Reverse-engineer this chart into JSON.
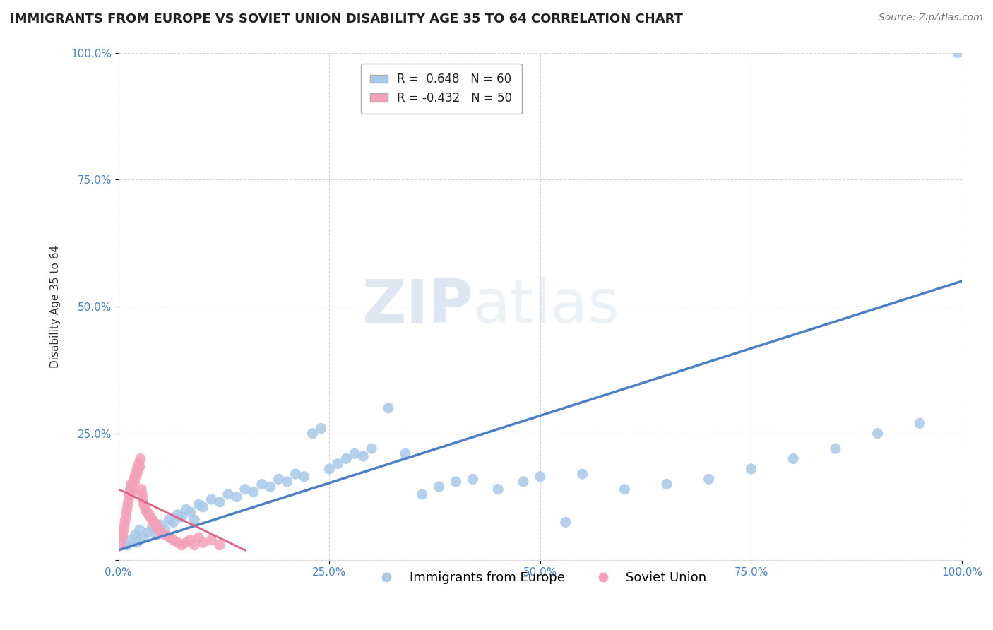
{
  "title": "IMMIGRANTS FROM EUROPE VS SOVIET UNION DISABILITY AGE 35 TO 64 CORRELATION CHART",
  "source": "Source: ZipAtlas.com",
  "ylabel": "Disability Age 35 to 64",
  "xlim": [
    0,
    100
  ],
  "ylim": [
    0,
    100
  ],
  "xticks": [
    0,
    25,
    50,
    75,
    100
  ],
  "yticks": [
    0,
    25,
    50,
    75,
    100
  ],
  "xticklabels": [
    "0.0%",
    "25.0%",
    "50.0%",
    "75.0%",
    "100.0%"
  ],
  "yticklabels": [
    "",
    "25.0%",
    "50.0%",
    "75.0%",
    "100.0%"
  ],
  "blue_R": 0.648,
  "blue_N": 60,
  "pink_R": -0.432,
  "pink_N": 50,
  "legend_label_blue": "Immigrants from Europe",
  "legend_label_pink": "Soviet Union",
  "blue_color": "#a8c8e8",
  "pink_color": "#f4a0b8",
  "blue_line_color": "#4a80c8",
  "pink_line_color": "#e06080",
  "blue_line": [
    [
      0,
      2.0
    ],
    [
      100,
      55.0
    ]
  ],
  "pink_line": [
    [
      0,
      14.0
    ],
    [
      15,
      2.0
    ]
  ],
  "blue_scatter": [
    [
      1.0,
      3.0
    ],
    [
      1.5,
      4.0
    ],
    [
      2.0,
      5.0
    ],
    [
      2.2,
      3.5
    ],
    [
      2.5,
      6.0
    ],
    [
      3.0,
      4.5
    ],
    [
      3.5,
      5.5
    ],
    [
      4.0,
      6.5
    ],
    [
      4.5,
      5.0
    ],
    [
      5.0,
      7.0
    ],
    [
      5.5,
      6.0
    ],
    [
      6.0,
      8.0
    ],
    [
      6.5,
      7.5
    ],
    [
      7.0,
      9.0
    ],
    [
      7.5,
      8.5
    ],
    [
      8.0,
      10.0
    ],
    [
      8.5,
      9.5
    ],
    [
      9.0,
      8.0
    ],
    [
      9.5,
      11.0
    ],
    [
      10.0,
      10.5
    ],
    [
      11.0,
      12.0
    ],
    [
      12.0,
      11.5
    ],
    [
      13.0,
      13.0
    ],
    [
      14.0,
      12.5
    ],
    [
      15.0,
      14.0
    ],
    [
      16.0,
      13.5
    ],
    [
      17.0,
      15.0
    ],
    [
      18.0,
      14.5
    ],
    [
      19.0,
      16.0
    ],
    [
      20.0,
      15.5
    ],
    [
      21.0,
      17.0
    ],
    [
      22.0,
      16.5
    ],
    [
      23.0,
      25.0
    ],
    [
      24.0,
      26.0
    ],
    [
      25.0,
      18.0
    ],
    [
      26.0,
      19.0
    ],
    [
      27.0,
      20.0
    ],
    [
      28.0,
      21.0
    ],
    [
      29.0,
      20.5
    ],
    [
      30.0,
      22.0
    ],
    [
      32.0,
      30.0
    ],
    [
      34.0,
      21.0
    ],
    [
      36.0,
      13.0
    ],
    [
      38.0,
      14.5
    ],
    [
      40.0,
      15.5
    ],
    [
      42.0,
      16.0
    ],
    [
      45.0,
      14.0
    ],
    [
      48.0,
      15.5
    ],
    [
      50.0,
      16.5
    ],
    [
      53.0,
      7.5
    ],
    [
      55.0,
      17.0
    ],
    [
      60.0,
      14.0
    ],
    [
      65.0,
      15.0
    ],
    [
      70.0,
      16.0
    ],
    [
      75.0,
      18.0
    ],
    [
      80.0,
      20.0
    ],
    [
      85.0,
      22.0
    ],
    [
      90.0,
      25.0
    ],
    [
      95.0,
      27.0
    ],
    [
      99.5,
      100.0
    ]
  ],
  "pink_scatter": [
    [
      0.3,
      3.0
    ],
    [
      0.4,
      4.5
    ],
    [
      0.5,
      5.0
    ],
    [
      0.6,
      6.0
    ],
    [
      0.7,
      7.0
    ],
    [
      0.8,
      8.0
    ],
    [
      0.9,
      9.0
    ],
    [
      1.0,
      10.0
    ],
    [
      1.1,
      11.0
    ],
    [
      1.2,
      12.0
    ],
    [
      1.3,
      13.0
    ],
    [
      1.4,
      14.0
    ],
    [
      1.5,
      15.0
    ],
    [
      1.6,
      14.5
    ],
    [
      1.7,
      13.5
    ],
    [
      1.8,
      16.0
    ],
    [
      1.9,
      15.5
    ],
    [
      2.0,
      17.0
    ],
    [
      2.1,
      16.5
    ],
    [
      2.2,
      18.0
    ],
    [
      2.3,
      17.5
    ],
    [
      2.4,
      19.0
    ],
    [
      2.5,
      18.5
    ],
    [
      2.6,
      20.0
    ],
    [
      2.7,
      14.0
    ],
    [
      2.8,
      13.0
    ],
    [
      2.9,
      12.0
    ],
    [
      3.0,
      11.0
    ],
    [
      3.2,
      10.0
    ],
    [
      3.4,
      9.5
    ],
    [
      3.6,
      9.0
    ],
    [
      3.8,
      8.5
    ],
    [
      4.0,
      8.0
    ],
    [
      4.2,
      7.5
    ],
    [
      4.4,
      7.0
    ],
    [
      4.6,
      6.5
    ],
    [
      4.8,
      6.0
    ],
    [
      5.0,
      5.5
    ],
    [
      5.5,
      5.0
    ],
    [
      6.0,
      4.5
    ],
    [
      6.5,
      4.0
    ],
    [
      7.0,
      3.5
    ],
    [
      7.5,
      3.0
    ],
    [
      8.0,
      3.5
    ],
    [
      8.5,
      4.0
    ],
    [
      9.0,
      3.0
    ],
    [
      9.5,
      4.5
    ],
    [
      10.0,
      3.5
    ],
    [
      11.0,
      4.0
    ],
    [
      12.0,
      3.0
    ]
  ],
  "watermark_zip": "ZIP",
  "watermark_atlas": "atlas",
  "background_color": "#ffffff",
  "grid_color": "#cccccc",
  "title_fontsize": 13,
  "axis_label_fontsize": 11,
  "tick_fontsize": 11,
  "source_fontsize": 10,
  "legend_fontsize": 12,
  "dot_size": 120
}
